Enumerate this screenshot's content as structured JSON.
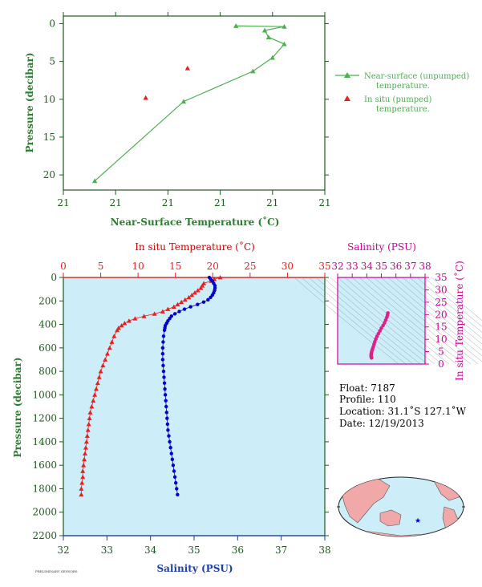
{
  "colors": {
    "green": "#4caf50",
    "dark_green": "#1a5c1a",
    "red": "#e8201f",
    "blue": "#0000cc",
    "magenta": "#e0208a",
    "panel": "#cdeef8"
  },
  "chart_data": [
    {
      "type": "line",
      "name_key": "near_surface",
      "xlabel": "Near-Surface Temperature (˚C)",
      "ylabel": "Pressure (decibar)",
      "xticks": [
        "21",
        "21",
        "21",
        "21",
        "21",
        "21"
      ],
      "yticks": [
        "0",
        "5",
        "10",
        "15",
        "20"
      ],
      "ylim": [
        22,
        -1
      ],
      "xlim": [
        0,
        1
      ],
      "series": [
        {
          "name": "Near-surface (unpumped) temperature.",
          "marker": "triangle",
          "color": "#4caf50",
          "connected": true,
          "x": [
            0.66,
            0.845,
            0.77,
            0.785,
            0.845,
            0.8,
            0.725,
            0.46,
            0.12
          ],
          "y": [
            0.3,
            0.4,
            0.9,
            1.8,
            2.7,
            4.5,
            6.3,
            10.3,
            20.8
          ]
        },
        {
          "name": "In situ (pumped) temperature.",
          "marker": "triangle",
          "color": "#e8201f",
          "connected": false,
          "x": [
            0.475,
            0.315
          ],
          "y": [
            5.9,
            9.8
          ]
        }
      ],
      "legend_position": "right"
    },
    {
      "type": "scatter",
      "name_key": "profile",
      "ylabel": "Pressure (decibar)",
      "x_bottom_label": "Salinity (PSU)",
      "x_top_label": "In situ Temperature (˚C)",
      "yticks": [
        "0",
        "200",
        "400",
        "600",
        "800",
        "1000",
        "1200",
        "1400",
        "1600",
        "1800",
        "2000",
        "2200"
      ],
      "ylim": [
        2200,
        0
      ],
      "sal_ticks": [
        "32",
        "33",
        "34",
        "35",
        "36",
        "37",
        "38"
      ],
      "sal_lim": [
        32,
        38
      ],
      "temp_ticks": [
        "0",
        "5",
        "10",
        "15",
        "20",
        "25",
        "30",
        "35"
      ],
      "temp_lim": [
        0,
        35
      ],
      "temperature": {
        "p": [
          0,
          15,
          30,
          50,
          70,
          90,
          110,
          130,
          150,
          170,
          190,
          210,
          230,
          250,
          270,
          290,
          310,
          330,
          350,
          370,
          390,
          410,
          430,
          450,
          500,
          550,
          600,
          650,
          700,
          750,
          800,
          850,
          900,
          950,
          1000,
          1050,
          1100,
          1150,
          1200,
          1250,
          1300,
          1350,
          1400,
          1450,
          1500,
          1550,
          1600,
          1650,
          1700,
          1750,
          1800,
          1850
        ],
        "t": [
          21.0,
          20.2,
          19.8,
          18.8,
          18.6,
          18.4,
          18.0,
          17.6,
          17.2,
          16.8,
          16.3,
          15.8,
          15.3,
          14.8,
          14.0,
          13.3,
          12.2,
          10.8,
          9.6,
          8.8,
          8.2,
          7.8,
          7.4,
          7.2,
          6.8,
          6.5,
          6.2,
          5.9,
          5.6,
          5.3,
          5.0,
          4.8,
          4.6,
          4.4,
          4.2,
          4.0,
          3.8,
          3.6,
          3.5,
          3.4,
          3.3,
          3.2,
          3.1,
          3.0,
          2.9,
          2.8,
          2.7,
          2.6,
          2.6,
          2.5,
          2.4,
          2.4
        ]
      },
      "salinity": {
        "p": [
          0,
          15,
          30,
          50,
          70,
          90,
          110,
          130,
          150,
          170,
          190,
          210,
          230,
          250,
          270,
          290,
          310,
          330,
          350,
          370,
          390,
          410,
          430,
          450,
          500,
          550,
          600,
          650,
          700,
          750,
          800,
          850,
          900,
          950,
          1000,
          1050,
          1100,
          1150,
          1200,
          1250,
          1300,
          1350,
          1400,
          1450,
          1500,
          1550,
          1600,
          1650,
          1700,
          1750,
          1800,
          1850
        ],
        "s": [
          35.35,
          35.38,
          35.42,
          35.45,
          35.48,
          35.48,
          35.47,
          35.45,
          35.42,
          35.38,
          35.32,
          35.22,
          35.08,
          34.92,
          34.78,
          34.66,
          34.56,
          34.48,
          34.44,
          34.4,
          34.37,
          34.34,
          34.33,
          34.32,
          34.3,
          34.29,
          34.28,
          34.28,
          34.28,
          34.29,
          34.3,
          34.31,
          34.32,
          34.33,
          34.34,
          34.35,
          34.36,
          34.37,
          34.38,
          34.39,
          34.4,
          34.42,
          34.44,
          34.46,
          34.48,
          34.5,
          34.52,
          34.54,
          34.56,
          34.58,
          34.6,
          34.62
        ]
      }
    },
    {
      "type": "scatter",
      "name_key": "ts",
      "title": "Salinity (PSU)",
      "ylabel": "In situ Temperature (˚C)",
      "sal_ticks": [
        "32",
        "33",
        "34",
        "35",
        "36",
        "37",
        "38"
      ],
      "sal_lim": [
        32,
        38
      ],
      "temp_ticks": [
        "0",
        "5",
        "10",
        "15",
        "20",
        "25",
        "30",
        "35"
      ],
      "temp_lim": [
        0,
        35
      ],
      "s": [
        35.45,
        35.42,
        35.38,
        35.3,
        35.22,
        35.12,
        35.0,
        34.9,
        34.8,
        34.7,
        34.62,
        34.55,
        34.5,
        34.45,
        34.4,
        34.36,
        34.33,
        34.31,
        34.3,
        34.3,
        34.31,
        34.33
      ],
      "t": [
        20.6,
        19.8,
        18.9,
        17.8,
        16.7,
        15.6,
        14.5,
        13.4,
        12.3,
        11.2,
        10.1,
        9.0,
        8.0,
        7.0,
        6.2,
        5.5,
        4.8,
        4.2,
        3.7,
        3.2,
        2.8,
        2.5
      ]
    }
  ],
  "info": {
    "float": "Float:  7187",
    "profile": "Profile:  110",
    "location": "Location:  31.1˚S  127.1˚W",
    "date": "Date:  12/19/2013"
  },
  "footer_id": "PRELIMINARY SENSORS"
}
